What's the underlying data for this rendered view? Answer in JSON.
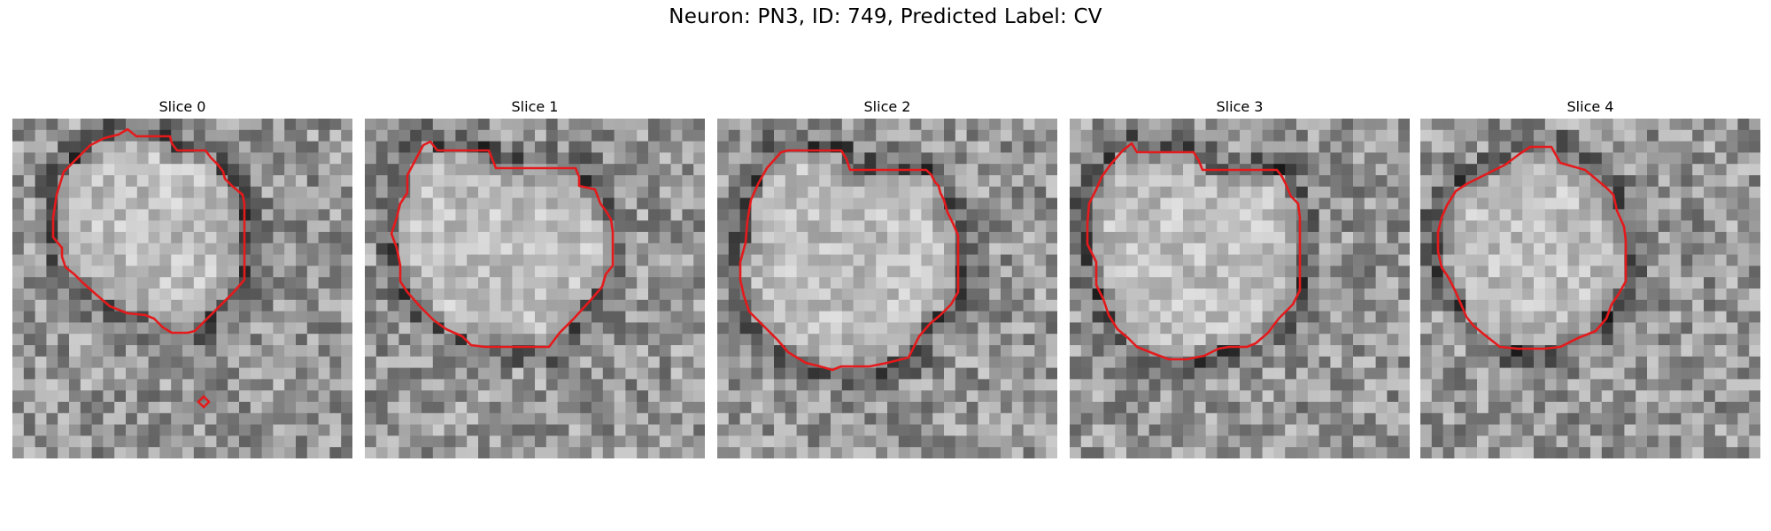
{
  "figure": {
    "title": "Neuron: PN3, ID: 749, Predicted Label: CV"
  },
  "colors": {
    "contour": "#e41a1c",
    "colormap": "grayscale"
  },
  "slices": [
    {
      "label": "Slice 0"
    },
    {
      "label": "Slice 1"
    },
    {
      "label": "Slice 2"
    },
    {
      "label": "Slice 3"
    },
    {
      "label": "Slice 4"
    }
  ]
}
